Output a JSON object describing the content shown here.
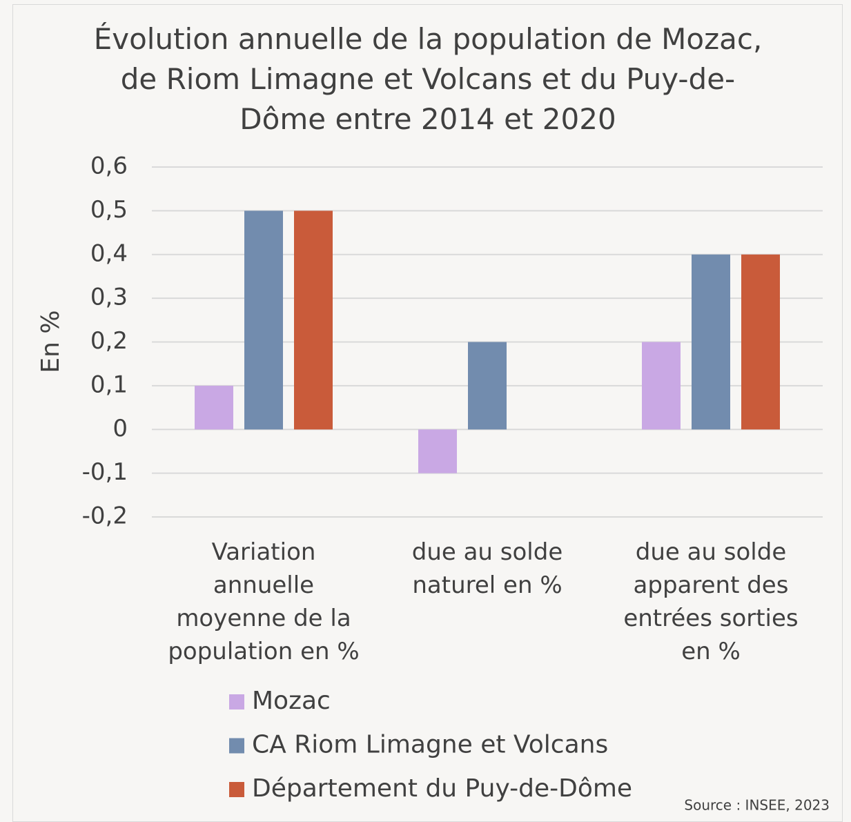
{
  "chart_data": {
    "type": "bar",
    "title": "Évolution annuelle de la population de Mozac, de Riom Limagne et Volcans et du Puy-de-Dôme entre 2014 et 2020",
    "ylabel": "En %",
    "categories": [
      "Variation annuelle moyenne de la population en %",
      "due au solde naturel en %",
      "due au solde apparent des entrées sorties en %"
    ],
    "series": [
      {
        "name": "Mozac",
        "color": "#c9a8e4",
        "values": [
          0.1,
          -0.1,
          0.2
        ]
      },
      {
        "name": "CA Riom Limagne et Volcans",
        "color": "#728cae",
        "values": [
          0.5,
          0.2,
          0.4
        ]
      },
      {
        "name": "Département du Puy-de-Dôme",
        "color": "#c95b3a",
        "values": [
          0.5,
          0,
          0.4
        ]
      }
    ],
    "ylim": [
      -0.2,
      0.6
    ],
    "yticks": [
      {
        "value": -0.2,
        "label": "-0,2"
      },
      {
        "value": -0.1,
        "label": "-0,1"
      },
      0,
      {
        "value": 0.1,
        "label": "0,1"
      },
      {
        "value": 0.2,
        "label": "0,2"
      },
      {
        "value": 0.3,
        "label": "0,3"
      },
      {
        "value": 0.4,
        "label": "0,4"
      },
      {
        "value": 0.5,
        "label": "0,5"
      },
      {
        "value": 0.6,
        "label": "0,6"
      }
    ],
    "grid": true,
    "legend": "bottom",
    "source": "Source : INSEE, 2023"
  }
}
